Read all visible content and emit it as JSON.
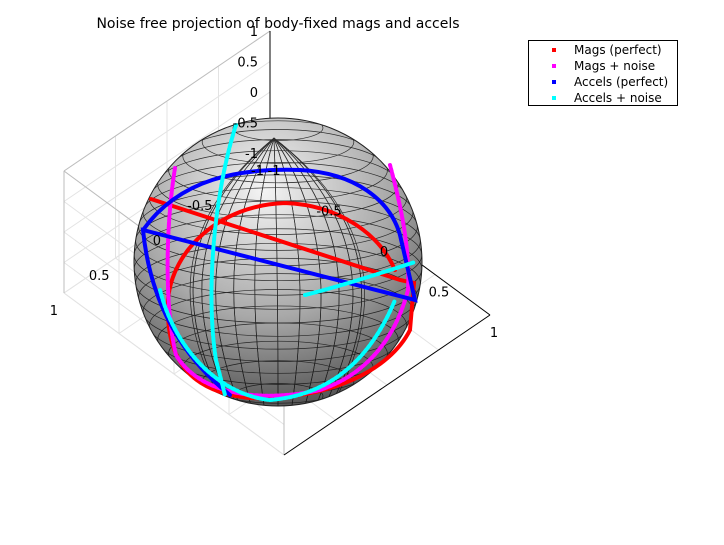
{
  "chart_data": {
    "type": "scatter",
    "title": "Noise free projection of body-fixed mags and accels",
    "xlabel": "",
    "ylabel": "",
    "zlabel": "",
    "xlim": [
      -1,
      1
    ],
    "ylim": [
      -1,
      1
    ],
    "zlim": [
      -1,
      1
    ],
    "x_ticks": [
      "-1",
      "-0.5",
      "0",
      "0.5",
      "1"
    ],
    "y_ticks": [
      "-1",
      "-0.5",
      "0",
      "0.5",
      "1"
    ],
    "z_ticks": [
      "-1",
      "-0.5",
      "0",
      "0.5",
      "1"
    ],
    "grid": true,
    "legend_position": "top-right",
    "surface": "unit sphere (gray shaded mesh)",
    "series": [
      {
        "name": "Mags (perfect)",
        "color": "#ff0000"
      },
      {
        "name": "Mags + noise",
        "color": "#ff00ff"
      },
      {
        "name": "Accels (perfect)",
        "color": "#0000ff"
      },
      {
        "name": "Accels + noise",
        "color": "#00ffff"
      }
    ]
  }
}
